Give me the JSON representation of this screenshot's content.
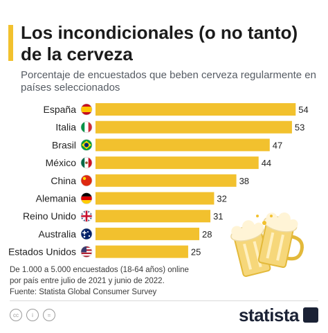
{
  "header": {
    "title": "Los incondicionales (o no tanto) de la cerveza",
    "subtitle": "Porcentaje de encuestados que beben cerveza regularmente en países seleccionados"
  },
  "chart_data": {
    "type": "bar",
    "orientation": "horizontal",
    "categories": [
      "España",
      "Italia",
      "Brasil",
      "México",
      "China",
      "Alemania",
      "Reino Unido",
      "Australia",
      "Estados Unidos"
    ],
    "values": [
      54,
      53,
      47,
      44,
      38,
      32,
      31,
      28,
      25
    ],
    "flags": [
      "flag-spain-icon",
      "flag-italy-icon",
      "flag-brazil-icon",
      "flag-mexico-icon",
      "flag-china-icon",
      "flag-germany-icon",
      "flag-uk-icon",
      "flag-australia-icon",
      "flag-usa-icon"
    ],
    "xlim": [
      0,
      56
    ],
    "bar_color": "#f2c12e",
    "grid": false,
    "legend": "none"
  },
  "footer": {
    "note_line1": "De 1.000 a 5.000 encuestados (18-64 años) online",
    "note_line2": "por país entre julio de 2021 y junio de 2022.",
    "source": "Fuente: Statista Global Consumer Survey",
    "brand": "statista"
  },
  "colors": {
    "accent": "#f2c12e",
    "brand": "#1b2235"
  }
}
